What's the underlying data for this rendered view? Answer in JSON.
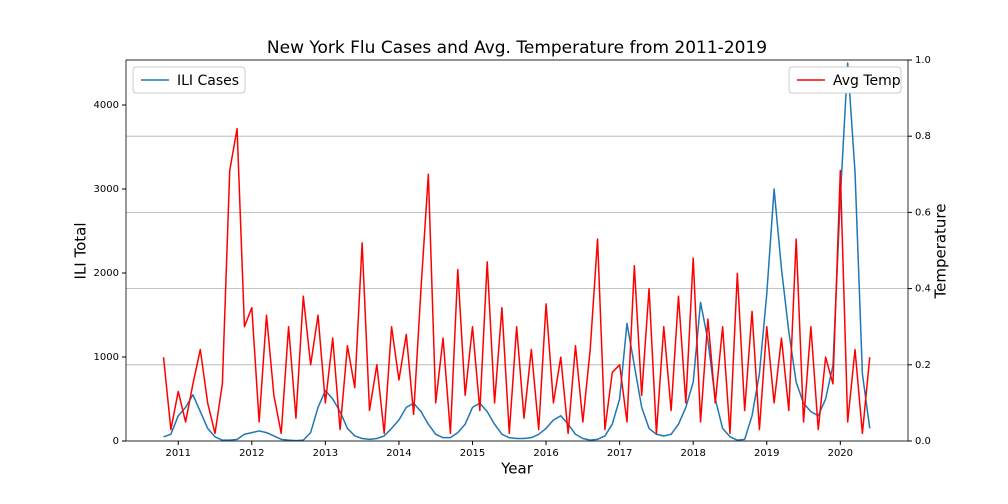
{
  "chart_data": {
    "type": "line",
    "title": "New York Flu Cases and Avg. Temperature from 2011-2019",
    "xlabel": "Year",
    "ylabel": "ILI Total",
    "y2label": "Temperature",
    "x": [
      2010.8,
      2010.9,
      2011.0,
      2011.1,
      2011.2,
      2011.3,
      2011.4,
      2011.5,
      2011.6,
      2011.7,
      2011.8,
      2011.9,
      2012.0,
      2012.1,
      2012.2,
      2012.3,
      2012.4,
      2012.5,
      2012.6,
      2012.7,
      2012.8,
      2012.9,
      2013.0,
      2013.1,
      2013.2,
      2013.3,
      2013.4,
      2013.5,
      2013.6,
      2013.7,
      2013.8,
      2013.9,
      2014.0,
      2014.1,
      2014.2,
      2014.3,
      2014.4,
      2014.5,
      2014.6,
      2014.7,
      2014.8,
      2014.9,
      2015.0,
      2015.1,
      2015.2,
      2015.3,
      2015.4,
      2015.5,
      2015.6,
      2015.7,
      2015.8,
      2015.9,
      2016.0,
      2016.1,
      2016.2,
      2016.3,
      2016.4,
      2016.5,
      2016.6,
      2016.7,
      2016.8,
      2016.9,
      2017.0,
      2017.1,
      2017.2,
      2017.3,
      2017.4,
      2017.5,
      2017.6,
      2017.7,
      2017.8,
      2017.9,
      2018.0,
      2018.1,
      2018.2,
      2018.3,
      2018.4,
      2018.5,
      2018.6,
      2018.7,
      2018.8,
      2018.9,
      2019.0,
      2019.1,
      2019.2,
      2019.3,
      2019.4,
      2019.5,
      2019.6,
      2019.7,
      2019.8,
      2019.9,
      2020.0,
      2020.1,
      2020.2,
      2020.3,
      2020.4
    ],
    "series": [
      {
        "name": "ILI Cases",
        "color": "#1f77b4",
        "legend_loc": "upper left",
        "values": [
          50,
          80,
          300,
          400,
          550,
          350,
          150,
          50,
          10,
          10,
          20,
          80,
          100,
          120,
          100,
          60,
          20,
          10,
          5,
          10,
          100,
          400,
          600,
          500,
          350,
          150,
          60,
          30,
          20,
          30,
          60,
          150,
          250,
          400,
          450,
          350,
          200,
          80,
          40,
          40,
          100,
          200,
          400,
          450,
          350,
          200,
          80,
          40,
          30,
          30,
          40,
          80,
          150,
          250,
          300,
          200,
          80,
          30,
          10,
          20,
          60,
          200,
          500,
          1400,
          900,
          400,
          150,
          80,
          60,
          80,
          200,
          400,
          700,
          1650,
          1200,
          500,
          150,
          50,
          10,
          20,
          300,
          800,
          1750,
          3000,
          2050,
          1300,
          700,
          450,
          350,
          300,
          500,
          900,
          2900,
          4500,
          3200,
          800,
          150
        ]
      },
      {
        "name": "Avg Temp",
        "color": "#ff0000",
        "axis": "y2",
        "legend_loc": "upper right",
        "values": [
          0.22,
          0.03,
          0.13,
          0.05,
          0.15,
          0.24,
          0.1,
          0.02,
          0.15,
          0.71,
          0.82,
          0.3,
          0.35,
          0.05,
          0.33,
          0.12,
          0.02,
          0.3,
          0.06,
          0.38,
          0.2,
          0.33,
          0.1,
          0.27,
          0.03,
          0.25,
          0.14,
          0.52,
          0.08,
          0.2,
          0.02,
          0.3,
          0.16,
          0.28,
          0.07,
          0.4,
          0.7,
          0.1,
          0.27,
          0.02,
          0.45,
          0.12,
          0.3,
          0.08,
          0.47,
          0.1,
          0.35,
          0.02,
          0.3,
          0.06,
          0.24,
          0.03,
          0.36,
          0.1,
          0.22,
          0.02,
          0.25,
          0.05,
          0.24,
          0.53,
          0.03,
          0.18,
          0.2,
          0.05,
          0.46,
          0.12,
          0.4,
          0.02,
          0.3,
          0.08,
          0.38,
          0.1,
          0.48,
          0.05,
          0.32,
          0.1,
          0.3,
          0.02,
          0.44,
          0.08,
          0.34,
          0.03,
          0.3,
          0.1,
          0.27,
          0.08,
          0.53,
          0.05,
          0.3,
          0.03,
          0.22,
          0.15,
          0.71,
          0.05,
          0.24,
          0.02,
          0.22
        ]
      }
    ],
    "xlim": [
      2010.29,
      2020.92
    ],
    "xticks": [
      2011,
      2012,
      2013,
      2014,
      2015,
      2016,
      2017,
      2018,
      2019,
      2020
    ],
    "ylim": [
      0,
      4536
    ],
    "yticks": [
      0,
      1000,
      2000,
      3000,
      4000
    ],
    "y2lim": [
      0,
      1
    ],
    "y2ticks": [
      {
        "value": 0,
        "label": "0.0"
      },
      0.2,
      0.4,
      0.6,
      0.8,
      {
        "value": 1,
        "label": "1.0"
      }
    ],
    "grid": "y2"
  }
}
